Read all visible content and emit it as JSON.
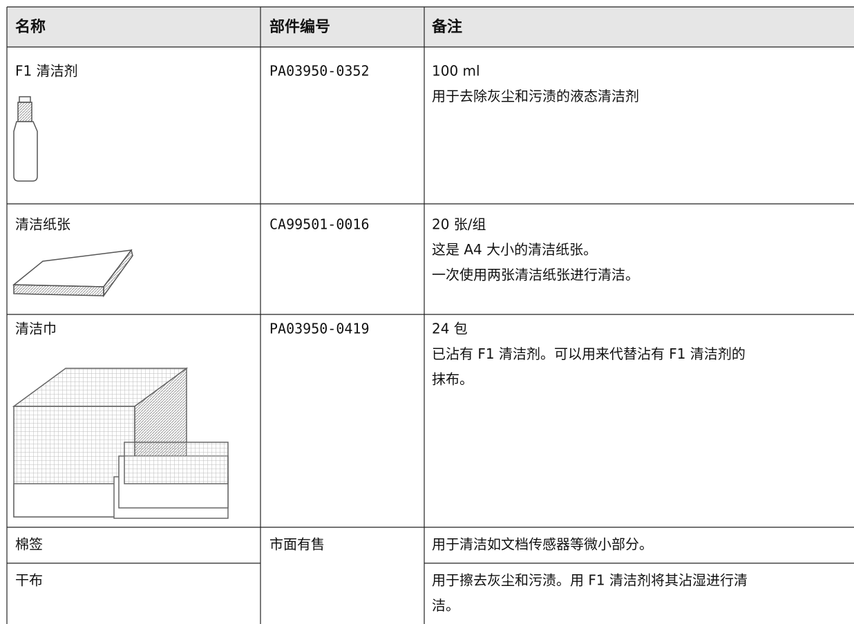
{
  "table": {
    "header": [
      "名称",
      "部件编号",
      "备注"
    ],
    "rows": [
      {
        "name": "F1 清洁剂",
        "part_number": "PA03950-0352",
        "notes": [
          "100 ml",
          "用于去除灰尘和污渍的液态清洁剂"
        ]
      },
      {
        "name": "清洁纸张",
        "part_number": "CA99501-0016",
        "notes": [
          "20 张/组",
          "这是 A4 大小的清洁纸张。",
          "一次使用两张清洁纸张进行清洁。"
        ]
      },
      {
        "name": "清洁巾",
        "part_number": "PA03950-0419",
        "notes": [
          "24 包",
          "已沾有 F1 清洁剂。可以用来代替沾有 F1 清洁剂的",
          "抹布。"
        ]
      },
      {
        "name": "棉签",
        "part_number": "市面有售",
        "notes": [
          "用于清洁如文档传感器等微小部分。"
        ]
      },
      {
        "name": "干布",
        "notes": [
          "用于擦去灰尘和污渍。用 F1 清洁剂将其沾湿进行清",
          "洁。"
        ]
      }
    ]
  }
}
